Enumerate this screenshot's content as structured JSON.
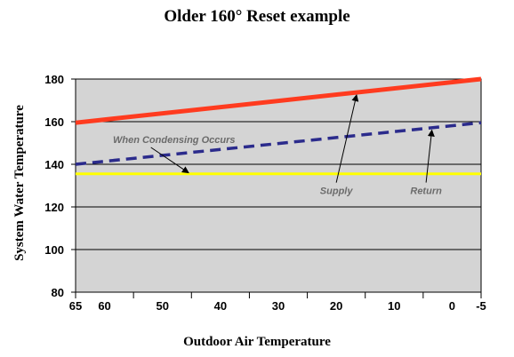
{
  "chart_data": {
    "type": "line",
    "title": "Older 160° Reset example",
    "xlabel": "Outdoor Air Temperature",
    "ylabel": "System Water Temperature",
    "x_reversed": true,
    "xlim": [
      65,
      -5
    ],
    "ylim": [
      80,
      180
    ],
    "x_ticks": [
      65,
      60,
      50,
      40,
      30,
      20,
      10,
      0,
      -5
    ],
    "y_ticks": [
      80,
      100,
      120,
      140,
      160,
      180
    ],
    "grid": "horizontal",
    "background": "#d4d4d4",
    "series": [
      {
        "name": "Supply",
        "color": "#ff3b1f",
        "style": "solid",
        "x": [
          65,
          -5
        ],
        "y": [
          159.5,
          180
        ]
      },
      {
        "name": "Return",
        "color": "#2b2b8c",
        "style": "dashed",
        "x": [
          65,
          -5
        ],
        "y": [
          140,
          159.5
        ]
      },
      {
        "name": "When Condensing Occurs",
        "color": "#ffff00",
        "style": "solid",
        "x": [
          65,
          -5
        ],
        "y": [
          135.5,
          135.5
        ]
      }
    ],
    "annotations": [
      {
        "text": "When Condensing Occurs",
        "at": [
          48,
          150
        ],
        "arrow_to": [
          45.5,
          136
        ]
      },
      {
        "text": "Supply",
        "at": [
          20,
          126
        ],
        "arrow_to": [
          16.5,
          172.5
        ]
      },
      {
        "text": "Return",
        "at": [
          4.5,
          126
        ],
        "arrow_to": [
          3.5,
          156
        ]
      }
    ]
  }
}
